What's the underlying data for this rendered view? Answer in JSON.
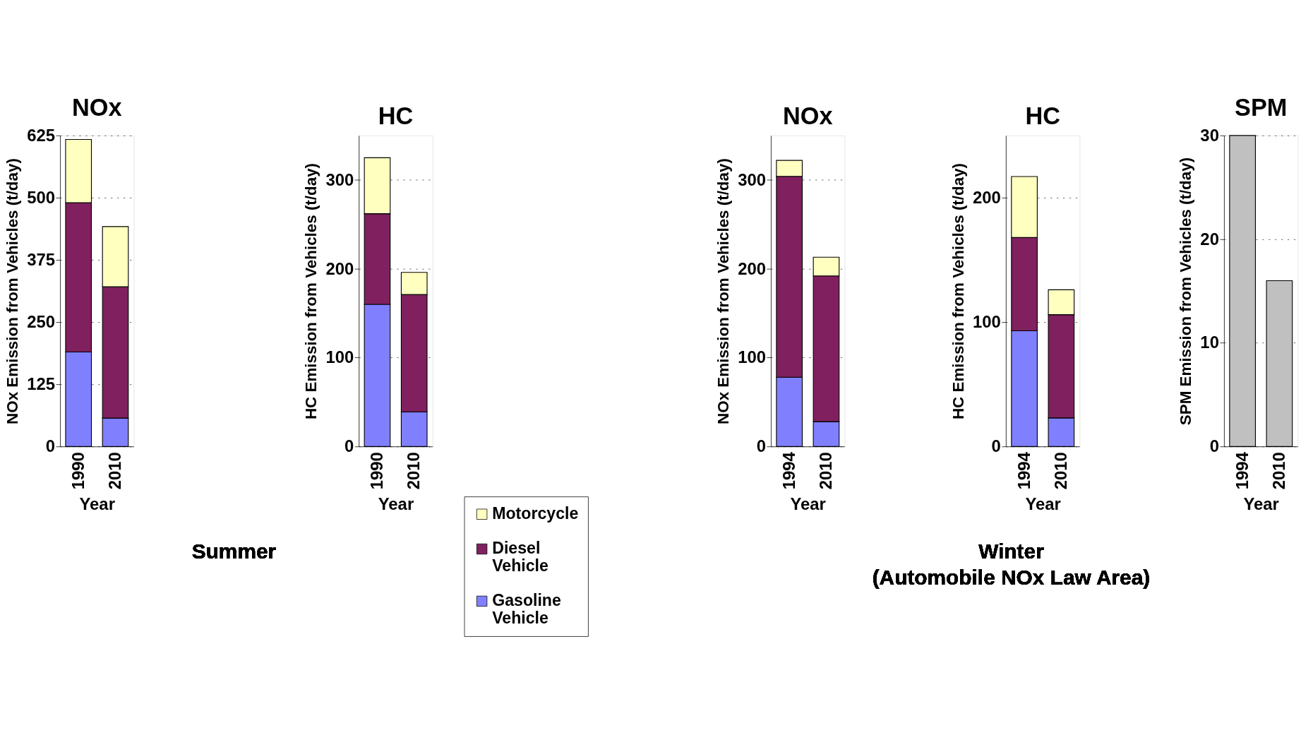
{
  "chart_data": [
    {
      "type": "bar",
      "stacked": true,
      "title": "NOx",
      "xlabel": "Year",
      "ylabel": "NOx Emission from Vehicles (t/day)",
      "categories": [
        "1990",
        "2010"
      ],
      "ylim": [
        0,
        625
      ],
      "yticks": [
        0,
        125,
        250,
        375,
        500,
        625
      ],
      "grid": "y",
      "annotations": [
        "Summer"
      ],
      "series": [
        {
          "color": "#8080ff",
          "values": [
            190,
            57
          ]
        },
        {
          "color": "#80205e",
          "values": [
            300,
            264
          ]
        },
        {
          "color": "#ffffc0",
          "values": [
            127,
            121
          ]
        }
      ]
    },
    {
      "type": "bar",
      "stacked": true,
      "title": "HC",
      "xlabel": "Year",
      "ylabel": "HC Emission from Vehicles (t/day)",
      "categories": [
        "1990",
        "2010"
      ],
      "ylim": [
        0,
        350
      ],
      "yticks": [
        0,
        100,
        200,
        300
      ],
      "grid": "y",
      "legend": "bottom right",
      "series": [
        {
          "name": "Gasoline Vehicle",
          "color": "#8080ff",
          "values": [
            160,
            39
          ]
        },
        {
          "name": "Diesel Vehicle",
          "color": "#80205e",
          "values": [
            102,
            132
          ]
        },
        {
          "name": "Motorcycle",
          "color": "#ffffc0",
          "values": [
            63,
            25
          ]
        }
      ]
    },
    {
      "type": "bar",
      "stacked": true,
      "title": "NOx",
      "xlabel": "Year",
      "ylabel": "NOx Emission from Vehicles (t/day)",
      "categories": [
        "1994",
        "2010"
      ],
      "ylim": [
        0,
        350
      ],
      "yticks": [
        0,
        100,
        200,
        300
      ],
      "grid": "y",
      "series": [
        {
          "color": "#8080ff",
          "values": [
            78,
            28
          ]
        },
        {
          "color": "#80205e",
          "values": [
            226,
            164
          ]
        },
        {
          "color": "#ffffc0",
          "values": [
            18,
            21
          ]
        }
      ]
    },
    {
      "type": "bar",
      "stacked": true,
      "title": "HC",
      "xlabel": "Year",
      "ylabel": "HC Emission from Vehicles (t/day)",
      "categories": [
        "1994",
        "2010"
      ],
      "ylim": [
        0,
        250
      ],
      "yticks": [
        0,
        100,
        200
      ],
      "grid": "y",
      "annotations": [
        "Winter",
        "(Automobile NOx Law Area)"
      ],
      "series": [
        {
          "color": "#8080ff",
          "values": [
            93,
            23
          ]
        },
        {
          "color": "#80205e",
          "values": [
            75,
            83
          ]
        },
        {
          "color": "#ffffc0",
          "values": [
            49,
            20
          ]
        }
      ]
    },
    {
      "type": "bar",
      "title": "SPM",
      "xlabel": "Year",
      "ylabel": "SPM Emission from Vehicles (t/day)",
      "categories": [
        "1994",
        "2010"
      ],
      "ylim": [
        0,
        30
      ],
      "yticks": [
        0,
        10,
        20,
        30
      ],
      "grid": "y",
      "series": [
        {
          "color": "#c0c0c0",
          "values": [
            30,
            16
          ]
        }
      ]
    }
  ]
}
